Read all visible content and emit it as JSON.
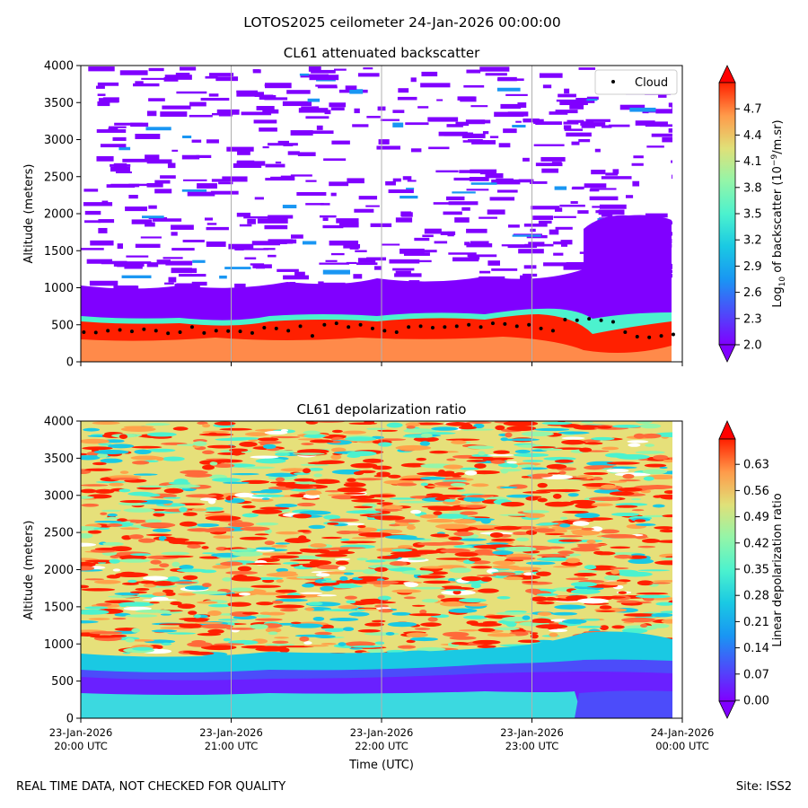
{
  "figure": {
    "suptitle": "LOTOS2025 ceilometer 24-Jan-2026 00:00:00",
    "footer_left": "REAL TIME DATA, NOT CHECKED FOR QUALITY",
    "footer_right": "Site: ISS2"
  },
  "chart_data": [
    {
      "type": "heatmap",
      "title": "CL61 attenuated backscatter",
      "xlabel": "",
      "ylabel": "Altitude (meters)",
      "xlim": [
        0,
        4
      ],
      "ylim": [
        0,
        4000
      ],
      "yticks": [
        0,
        500,
        1000,
        1500,
        2000,
        2500,
        3000,
        3500,
        4000
      ],
      "x_ticks": [
        {
          "value": 0,
          "line1": "23-Jan-2026",
          "line2": "20:00 UTC"
        },
        {
          "value": 1,
          "line1": "23-Jan-2026",
          "line2": "21:00 UTC"
        },
        {
          "value": 2,
          "line1": "23-Jan-2026",
          "line2": "22:00 UTC"
        },
        {
          "value": 3,
          "line1": "23-Jan-2026",
          "line2": "23:00 UTC"
        },
        {
          "value": 4,
          "line1": "24-Jan-2026",
          "line2": "00:00 UTC"
        }
      ],
      "x_tick_labels_visible": false,
      "grid": "vertical",
      "legend": {
        "label": "Cloud",
        "placement": "top-right"
      },
      "colorbar": {
        "label_prefix": "Log",
        "label_sub": "10",
        "label_mid": " of backscatter (10",
        "label_sup": "−9",
        "label_suffix": "/m.sr)",
        "range": [
          2.0,
          5.0
        ],
        "ticks": [
          "2.0",
          "2.3",
          "2.6",
          "2.9",
          "3.2",
          "3.5",
          "3.8",
          "4.1",
          "4.4",
          "4.7"
        ],
        "extend": "both"
      },
      "cloud_base_hours": [
        0.02,
        0.1,
        0.18,
        0.26,
        0.34,
        0.42,
        0.5,
        0.58,
        0.66,
        0.74,
        0.82,
        0.9,
        0.98,
        1.06,
        1.14,
        1.22,
        1.3,
        1.38,
        1.46,
        1.54,
        1.62,
        1.7,
        1.78,
        1.86,
        1.94,
        2.02,
        2.1,
        2.18,
        2.26,
        2.34,
        2.42,
        2.5,
        2.58,
        2.66,
        2.74,
        2.82,
        2.9,
        2.98,
        3.06,
        3.14,
        3.22,
        3.3,
        3.38,
        3.46,
        3.54,
        3.62,
        3.7,
        3.78,
        3.86,
        3.94
      ],
      "cloud_base_m": [
        400,
        395,
        420,
        430,
        410,
        440,
        420,
        385,
        400,
        470,
        390,
        420,
        415,
        410,
        390,
        460,
        450,
        420,
        480,
        350,
        500,
        520,
        470,
        500,
        450,
        420,
        400,
        470,
        480,
        460,
        470,
        480,
        500,
        470,
        520,
        510,
        480,
        500,
        450,
        420,
        570,
        560,
        580,
        560,
        540,
        400,
        340,
        330,
        350,
        370
      ]
    },
    {
      "type": "heatmap",
      "title": "CL61 depolarization ratio",
      "xlabel": "Time (UTC)",
      "ylabel": "Altitude (meters)",
      "xlim": [
        0,
        4
      ],
      "ylim": [
        0,
        4000
      ],
      "yticks": [
        0,
        500,
        1000,
        1500,
        2000,
        2500,
        3000,
        3500,
        4000
      ],
      "grid": "vertical",
      "colorbar": {
        "label": "Linear depolarization ratio",
        "range": [
          0.0,
          0.7
        ],
        "ticks": [
          "0.00",
          "0.07",
          "0.14",
          "0.21",
          "0.28",
          "0.35",
          "0.42",
          "0.49",
          "0.56",
          "0.63"
        ],
        "extend": "both"
      }
    }
  ]
}
